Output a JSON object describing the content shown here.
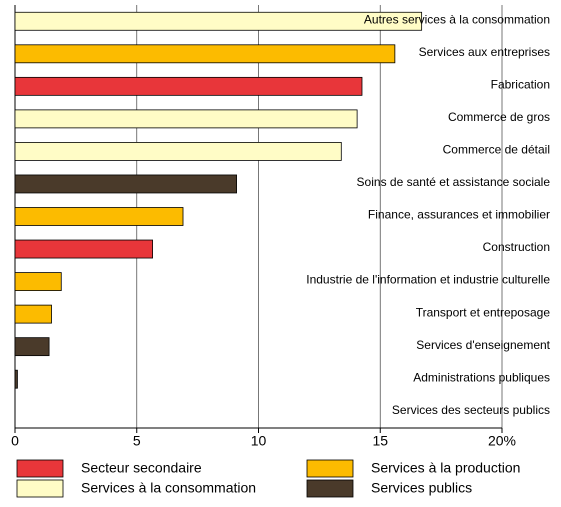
{
  "chart_data": {
    "type": "bar",
    "orientation": "horizontal",
    "categories": [
      "Autres services à la consommation",
      "Services aux entreprises",
      "Fabrication",
      "Commerce de gros",
      "Commerce de détail",
      "Soins de santé et assistance sociale",
      "Finance, assurances et immobilier",
      "Construction",
      "Industrie de l'information et industrie culturelle",
      "Transport et entreposage",
      "Services d'enseignement",
      "Administrations publiques",
      "Services des secteurs publics"
    ],
    "values": [
      16.7,
      15.6,
      14.25,
      14.05,
      13.4,
      9.1,
      6.9,
      5.65,
      1.9,
      1.5,
      1.4,
      0.1,
      0
    ],
    "colors": [
      "#fffcc6",
      "#fcbb00",
      "#e8363a",
      "#fffcc6",
      "#fffcc6",
      "#4a3a2a",
      "#fcbb00",
      "#e8363a",
      "#fcbb00",
      "#fcbb00",
      "#4a3a2a",
      "#4a3a2a",
      "#4a3a2a"
    ],
    "xlim": [
      0,
      20
    ],
    "xticks": [
      0,
      5,
      10,
      15,
      {
        "value": 20,
        "label": "20%"
      }
    ],
    "grid": true,
    "legend": [
      {
        "name": "Secteur secondaire",
        "color": "#e8363a"
      },
      {
        "name": "Services à la production",
        "color": "#fcbb00"
      },
      {
        "name": "Services à la consommation",
        "color": "#fffcc6"
      },
      {
        "name": "Services publics",
        "color": "#4a3a2a"
      }
    ]
  }
}
